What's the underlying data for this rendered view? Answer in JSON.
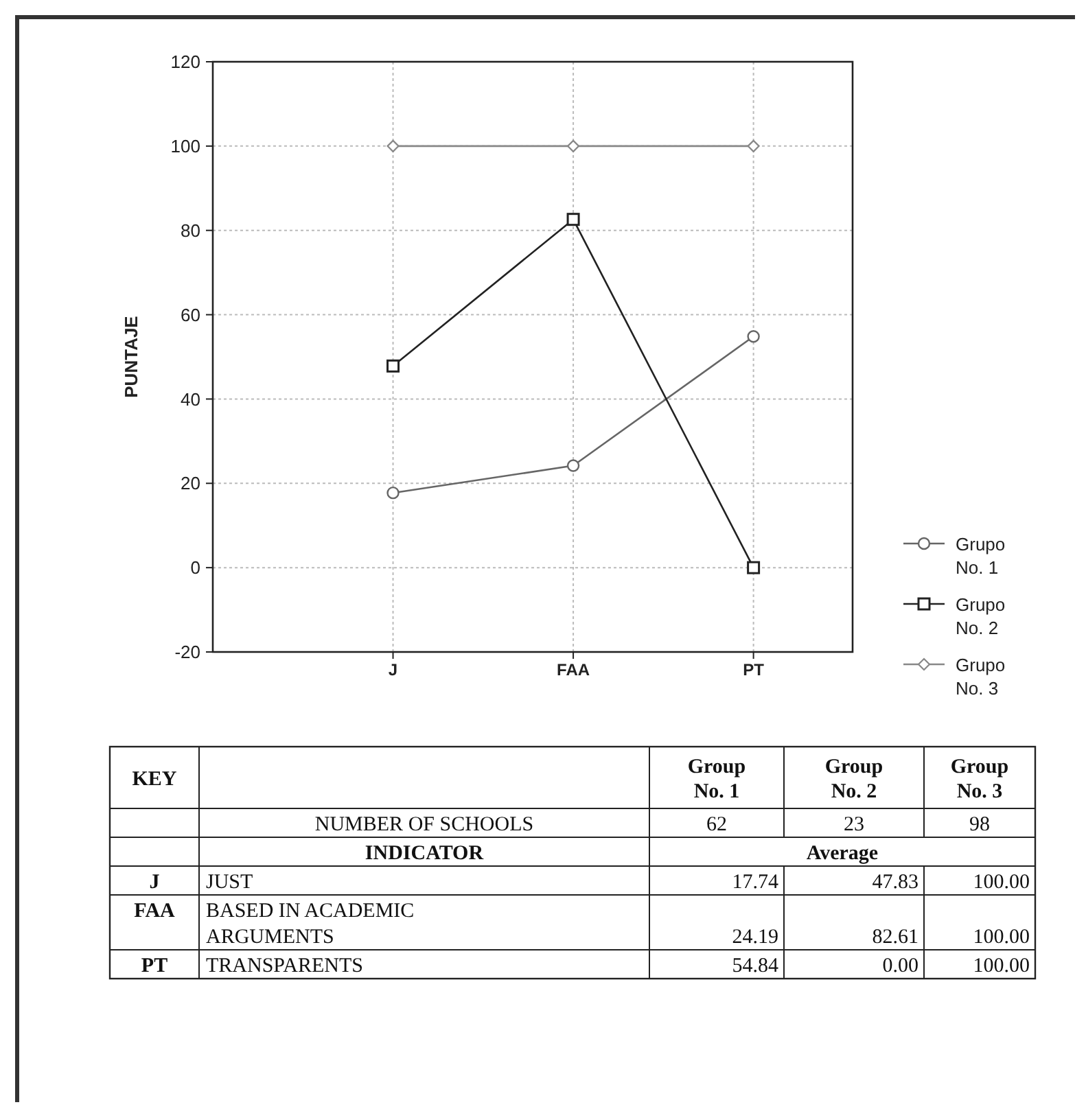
{
  "chart_data": {
    "type": "line",
    "ylabel": "PUNTAJE",
    "categories": [
      "J",
      "FAA",
      "PT"
    ],
    "ylim": [
      -20,
      120
    ],
    "yticks": [
      -20,
      0,
      20,
      40,
      60,
      80,
      100,
      120
    ],
    "grid": true,
    "legend": "right",
    "series": [
      {
        "name": "Grupo No. 1",
        "color": "#666666",
        "marker": "circle",
        "values": [
          17.74,
          24.19,
          54.84
        ]
      },
      {
        "name": "Grupo No. 2",
        "color": "#222222",
        "marker": "square",
        "values": [
          47.83,
          82.61,
          0
        ]
      },
      {
        "name": "Grupo No. 3",
        "color": "#888888",
        "marker": "diamond",
        "values": [
          100,
          100,
          100
        ]
      }
    ],
    "annotations": [
      "KEY",
      "Group No. 1",
      "Group No. 2",
      "Group No. 3",
      "NUMBER OF SCHOOLS",
      "62",
      "23",
      "98",
      "INDICATOR",
      "Average",
      "JUST",
      "BASED IN ACADEMIC ARGUMENTS",
      "TRANSPARENTS",
      "17.74",
      "47.83",
      "100.00",
      "24.19",
      "82.61",
      "100.00",
      "54.84",
      "0.00",
      "100.00"
    ]
  }
}
